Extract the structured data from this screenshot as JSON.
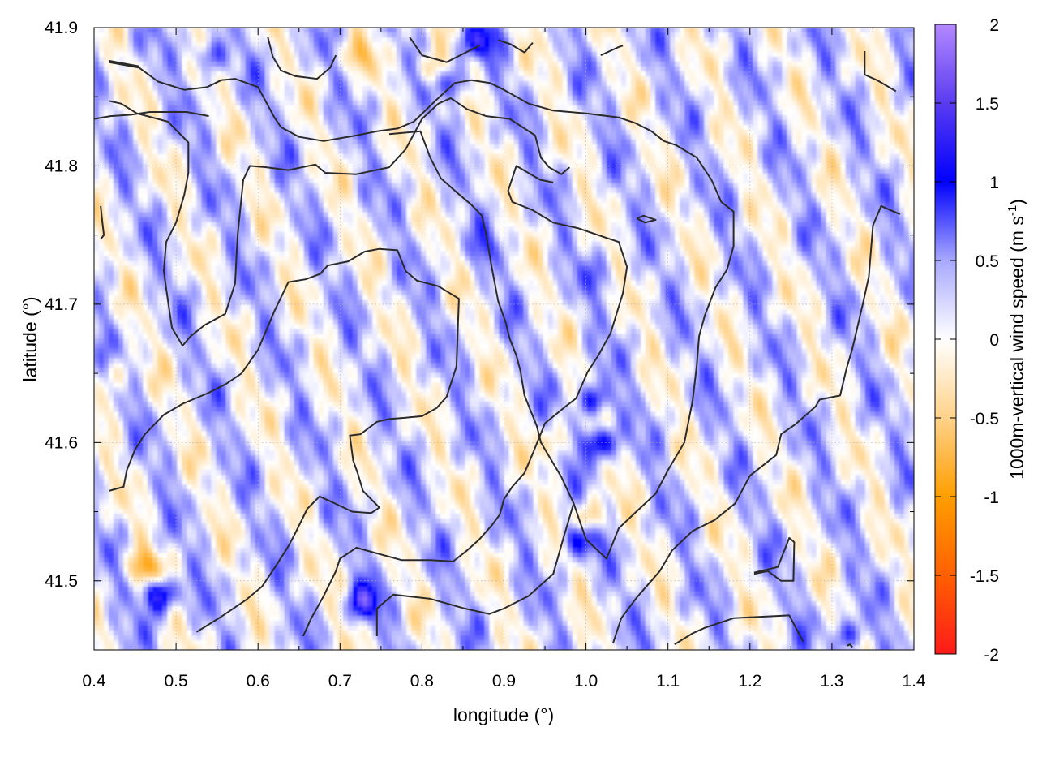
{
  "chart_data": {
    "type": "heatmap",
    "xlabel": "longitude (°)",
    "ylabel": "latitude (°)",
    "colorbar_label": "1000m-vertical wind speed (m s",
    "colorbar_label_sup": "-1",
    "colorbar_label_close": ")",
    "xlim": [
      0.4,
      1.4
    ],
    "ylim": [
      41.45,
      41.9
    ],
    "x_ticks": [
      0.4,
      0.5,
      0.6,
      0.7,
      0.8,
      0.9,
      1.0,
      1.1,
      1.2,
      1.3,
      1.4
    ],
    "x_tick_labels": [
      "0.4",
      "0.5",
      "0.6",
      "0.7",
      "0.8",
      "0.9",
      "1.0",
      "1.1",
      "1.2",
      "1.3",
      "1.4"
    ],
    "y_ticks": [
      41.5,
      41.6,
      41.7,
      41.8,
      41.9
    ],
    "y_tick_labels": [
      "41.5",
      "41.6",
      "41.7",
      "41.8",
      "41.9"
    ],
    "color_range": [
      -2,
      2
    ],
    "colorbar_ticks": [
      2,
      1.5,
      1,
      0.5,
      0,
      -0.5,
      -1,
      -1.5,
      -2
    ],
    "colorbar_tick_labels": [
      "2",
      "1.5",
      "1",
      "0.5",
      "0",
      "-0.5",
      "-1",
      "-1.5",
      "-2"
    ],
    "colormap_stops": [
      {
        "value": -2,
        "color": "#ff1a1a"
      },
      {
        "value": -1,
        "color": "#ff9e00"
      },
      {
        "value": 0,
        "color": "#ffffff"
      },
      {
        "value": 1,
        "color": "#0000ff"
      },
      {
        "value": 2,
        "color": "#b388ff"
      }
    ],
    "grid": true,
    "features": [
      {
        "x": 0.48,
        "y": 41.49,
        "value": 1.3
      },
      {
        "x": 0.46,
        "y": 41.51,
        "value": -0.8
      },
      {
        "x": 0.73,
        "y": 41.485,
        "value": 1.1
      },
      {
        "x": 1.015,
        "y": 41.6,
        "value": 1.2
      },
      {
        "x": 1.01,
        "y": 41.63,
        "value": 1.0
      },
      {
        "x": 0.99,
        "y": 41.53,
        "value": 1.0
      },
      {
        "x": 1.005,
        "y": 41.545,
        "value": -0.7
      },
      {
        "x": 0.965,
        "y": 41.6,
        "value": -0.5
      },
      {
        "x": 0.84,
        "y": 41.86,
        "value": 0.8
      },
      {
        "x": 0.87,
        "y": 41.89,
        "value": 0.9
      },
      {
        "x": 0.54,
        "y": 41.88,
        "value": 0.8
      },
      {
        "x": 0.81,
        "y": 41.87,
        "value": -0.6
      },
      {
        "x": 0.72,
        "y": 41.88,
        "value": -0.5
      },
      {
        "x": 1.32,
        "y": 41.46,
        "value": 0.8
      },
      {
        "x": 0.43,
        "y": 41.65,
        "value": -0.4
      },
      {
        "x": 0.88,
        "y": 41.74,
        "value": 0.3
      },
      {
        "x": 1.02,
        "y": 41.72,
        "value": 0.3
      }
    ],
    "contours": [
      [
        [
          0.418,
          41.565
        ],
        [
          0.436,
          41.568
        ],
        [
          0.44,
          41.58
        ],
        [
          0.45,
          41.595
        ],
        [
          0.462,
          41.606
        ],
        [
          0.485,
          41.62
        ],
        [
          0.508,
          41.628
        ],
        [
          0.52,
          41.631
        ],
        [
          0.54,
          41.636
        ],
        [
          0.56,
          41.642
        ],
        [
          0.58,
          41.65
        ],
        [
          0.6,
          41.667
        ],
        [
          0.62,
          41.695
        ],
        [
          0.637,
          41.716
        ],
        [
          0.658,
          41.718
        ],
        [
          0.676,
          41.722
        ],
        [
          0.685,
          41.728
        ],
        [
          0.71,
          41.731
        ],
        [
          0.73,
          41.738
        ],
        [
          0.748,
          41.74
        ],
        [
          0.77,
          41.739
        ],
        [
          0.78,
          41.724
        ],
        [
          0.794,
          41.717
        ],
        [
          0.82,
          41.713
        ],
        [
          0.845,
          41.704
        ],
        [
          0.842,
          41.655
        ],
        [
          0.83,
          41.633
        ],
        [
          0.818,
          41.625
        ],
        [
          0.8,
          41.619
        ],
        [
          0.78,
          41.618
        ],
        [
          0.76,
          41.617
        ],
        [
          0.745,
          41.615
        ],
        [
          0.725,
          41.606
        ],
        [
          0.712,
          41.605
        ],
        [
          0.716,
          41.587
        ],
        [
          0.722,
          41.577
        ],
        [
          0.728,
          41.565
        ],
        [
          0.748,
          41.553
        ],
        [
          0.738,
          41.549
        ],
        [
          0.715,
          41.55
        ],
        [
          0.69,
          41.557
        ],
        [
          0.675,
          41.561
        ],
        [
          0.66,
          41.552
        ],
        [
          0.645,
          41.534
        ],
        [
          0.637,
          41.525
        ],
        [
          0.621,
          41.51
        ],
        [
          0.605,
          41.496
        ],
        [
          0.585,
          41.486
        ],
        [
          0.555,
          41.474
        ],
        [
          0.525,
          41.463
        ]
      ],
      [
        [
          0.54,
          41.836
        ],
        [
          0.513,
          41.839
        ],
        [
          0.485,
          41.839
        ],
        [
          0.468,
          41.839
        ],
        [
          0.445,
          41.837
        ],
        [
          0.42,
          41.836
        ],
        [
          0.4,
          41.834
        ]
      ],
      [
        [
          0.418,
          41.847
        ],
        [
          0.433,
          41.845
        ],
        [
          0.452,
          41.838
        ],
        [
          0.49,
          41.832
        ],
        [
          0.515,
          41.817
        ],
        [
          0.515,
          41.795
        ],
        [
          0.51,
          41.779
        ],
        [
          0.5,
          41.759
        ],
        [
          0.488,
          41.745
        ],
        [
          0.485,
          41.724
        ],
        [
          0.49,
          41.703
        ],
        [
          0.495,
          41.683
        ],
        [
          0.508,
          41.67
        ],
        [
          0.518,
          41.677
        ],
        [
          0.535,
          41.685
        ],
        [
          0.56,
          41.693
        ],
        [
          0.572,
          41.715
        ],
        [
          0.575,
          41.749
        ],
        [
          0.582,
          41.79
        ],
        [
          0.59,
          41.8
        ],
        [
          0.61,
          41.799
        ],
        [
          0.637,
          41.797
        ],
        [
          0.67,
          41.801
        ],
        [
          0.682,
          41.795
        ],
        [
          0.72,
          41.794
        ],
        [
          0.76,
          41.799
        ],
        [
          0.78,
          41.812
        ],
        [
          0.8,
          41.834
        ],
        [
          0.82,
          41.845
        ],
        [
          0.835,
          41.849
        ],
        [
          0.855,
          41.841
        ],
        [
          0.878,
          41.836
        ],
        [
          0.907,
          41.834
        ],
        [
          0.938,
          41.822
        ],
        [
          0.945,
          41.806
        ],
        [
          0.955,
          41.799
        ],
        [
          0.97,
          41.794
        ],
        [
          0.98,
          41.799
        ]
      ],
      [
        [
          0.418,
          41.875
        ],
        [
          0.455,
          41.871
        ],
        [
          0.478,
          41.861
        ],
        [
          0.51,
          41.855
        ],
        [
          0.538,
          41.857
        ],
        [
          0.555,
          41.862
        ],
        [
          0.572,
          41.863
        ],
        [
          0.6,
          41.857
        ],
        [
          0.62,
          41.835
        ],
        [
          0.628,
          41.828
        ],
        [
          0.65,
          41.821
        ],
        [
          0.68,
          41.818
        ],
        [
          0.7,
          41.82
        ],
        [
          0.72,
          41.822
        ],
        [
          0.745,
          41.825
        ],
        [
          0.77,
          41.827
        ],
        [
          0.79,
          41.832
        ],
        [
          0.818,
          41.848
        ],
        [
          0.84,
          41.86
        ],
        [
          0.86,
          41.862
        ],
        [
          0.883,
          41.86
        ],
        [
          0.9,
          41.855
        ],
        [
          0.93,
          41.845
        ],
        [
          0.96,
          41.84
        ],
        [
          1.0,
          41.838
        ],
        [
          1.04,
          41.835
        ],
        [
          1.06,
          41.831
        ],
        [
          1.08,
          41.825
        ],
        [
          1.095,
          41.818
        ],
        [
          1.11,
          41.815
        ],
        [
          1.135,
          41.806
        ],
        [
          1.153,
          41.79
        ],
        [
          1.165,
          41.774
        ],
        [
          1.18,
          41.767
        ],
        [
          1.18,
          41.746
        ],
        [
          1.18,
          41.742
        ],
        [
          1.172,
          41.725
        ],
        [
          1.158,
          41.712
        ],
        [
          1.145,
          41.692
        ],
        [
          1.138,
          41.677
        ],
        [
          1.135,
          41.655
        ],
        [
          1.13,
          41.63
        ],
        [
          1.12,
          41.6
        ],
        [
          1.1,
          41.58
        ],
        [
          1.085,
          41.563
        ],
        [
          1.065,
          41.552
        ],
        [
          1.04,
          41.538
        ],
        [
          1.025,
          41.516
        ],
        [
          1.0,
          41.53
        ],
        [
          0.985,
          41.556
        ],
        [
          0.97,
          41.575
        ],
        [
          0.955,
          41.59
        ],
        [
          0.945,
          41.6
        ],
        [
          0.94,
          41.612
        ],
        [
          0.925,
          41.634
        ],
        [
          0.92,
          41.652
        ],
        [
          0.915,
          41.663
        ],
        [
          0.907,
          41.675
        ],
        [
          0.902,
          41.687
        ],
        [
          0.893,
          41.702
        ],
        [
          0.885,
          41.727
        ],
        [
          0.878,
          41.751
        ],
        [
          0.873,
          41.764
        ],
        [
          0.86,
          41.772
        ],
        [
          0.842,
          41.781
        ],
        [
          0.823,
          41.791
        ],
        [
          0.81,
          41.806
        ],
        [
          0.798,
          41.825
        ],
        [
          0.76,
          41.823
        ]
      ],
      [
        [
          0.418,
          41.876
        ],
        [
          0.455,
          41.872
        ]
      ],
      [
        [
          1.378,
          41.854
        ],
        [
          1.355,
          41.862
        ],
        [
          1.34,
          41.866
        ],
        [
          1.34,
          41.883
        ]
      ],
      [
        [
          1.383,
          41.765
        ],
        [
          1.36,
          41.771
        ],
        [
          1.35,
          41.757
        ],
        [
          1.345,
          41.72
        ],
        [
          1.338,
          41.701
        ],
        [
          1.325,
          41.668
        ],
        [
          1.318,
          41.654
        ],
        [
          1.31,
          41.634
        ],
        [
          1.285,
          41.631
        ],
        [
          1.28,
          41.626
        ],
        [
          1.255,
          41.613
        ],
        [
          1.238,
          41.606
        ],
        [
          1.232,
          41.591
        ],
        [
          1.2,
          41.576
        ],
        [
          1.182,
          41.556
        ],
        [
          1.157,
          41.544
        ],
        [
          1.13,
          41.536
        ],
        [
          1.105,
          41.522
        ],
        [
          1.09,
          41.507
        ],
        [
          1.062,
          41.488
        ],
        [
          1.043,
          41.473
        ],
        [
          1.033,
          41.455
        ]
      ],
      [
        [
          0.655,
          41.46
        ],
        [
          0.665,
          41.473
        ],
        [
          0.68,
          41.489
        ],
        [
          0.695,
          41.507
        ],
        [
          0.7,
          41.516
        ],
        [
          0.72,
          41.524
        ],
        [
          0.738,
          41.521
        ],
        [
          0.775,
          41.515
        ],
        [
          0.81,
          41.515
        ],
        [
          0.838,
          41.514
        ],
        [
          0.855,
          41.522
        ],
        [
          0.87,
          41.53
        ],
        [
          0.885,
          41.54
        ],
        [
          0.895,
          41.548
        ],
        [
          0.9,
          41.559
        ],
        [
          0.91,
          41.568
        ],
        [
          0.925,
          41.578
        ],
        [
          0.935,
          41.592
        ],
        [
          0.95,
          41.614
        ],
        [
          0.975,
          41.626
        ],
        [
          0.988,
          41.632
        ],
        [
          1.002,
          41.651
        ],
        [
          1.015,
          41.663
        ],
        [
          1.03,
          41.679
        ],
        [
          1.045,
          41.708
        ],
        [
          1.05,
          41.727
        ],
        [
          1.04,
          41.745
        ],
        [
          1.02,
          41.749
        ],
        [
          0.99,
          41.755
        ],
        [
          0.96,
          41.759
        ],
        [
          0.935,
          41.768
        ],
        [
          0.91,
          41.774
        ],
        [
          0.905,
          41.782
        ],
        [
          0.915,
          41.8
        ],
        [
          0.944,
          41.79
        ],
        [
          0.96,
          41.788
        ]
      ],
      [
        [
          0.745,
          41.46
        ],
        [
          0.745,
          41.48
        ],
        [
          0.765,
          41.49
        ],
        [
          0.81,
          41.487
        ],
        [
          0.852,
          41.48
        ],
        [
          0.882,
          41.476
        ],
        [
          0.9,
          41.48
        ],
        [
          0.93,
          41.489
        ],
        [
          0.96,
          41.505
        ],
        [
          0.972,
          41.53
        ],
        [
          0.985,
          41.556
        ]
      ],
      [
        [
          1.062,
          41.762
        ],
        [
          1.07,
          41.764
        ],
        [
          1.085,
          41.761
        ],
        [
          1.072,
          41.759
        ],
        [
          1.062,
          41.762
        ]
      ],
      [
        [
          1.205,
          41.505
        ],
        [
          1.222,
          41.507
        ],
        [
          1.238,
          41.5
        ],
        [
          1.253,
          41.5
        ],
        [
          1.254,
          41.528
        ],
        [
          1.248,
          41.531
        ],
        [
          1.234,
          41.51
        ],
        [
          1.205,
          41.506
        ]
      ],
      [
        [
          1.108,
          41.454
        ],
        [
          1.13,
          41.462
        ],
        [
          1.145,
          41.466
        ],
        [
          1.18,
          41.473
        ],
        [
          1.248,
          41.475
        ],
        [
          1.265,
          41.456
        ]
      ],
      [
        [
          0.408,
          41.771
        ],
        [
          0.41,
          41.76
        ],
        [
          0.412,
          41.75
        ],
        [
          0.408,
          41.747
        ]
      ],
      [
        [
          0.612,
          41.893
        ],
        [
          0.618,
          41.879
        ],
        [
          0.628,
          41.869
        ],
        [
          0.645,
          41.865
        ],
        [
          0.672,
          41.863
        ],
        [
          0.688,
          41.871
        ],
        [
          0.695,
          41.88
        ]
      ],
      [
        [
          0.785,
          41.893
        ],
        [
          0.8,
          41.88
        ],
        [
          0.83,
          41.875
        ],
        [
          0.87,
          41.887
        ]
      ],
      [
        [
          0.893,
          41.891
        ],
        [
          0.908,
          41.888
        ],
        [
          0.925,
          41.882
        ],
        [
          0.935,
          41.889
        ]
      ],
      [
        [
          1.018,
          41.88
        ],
        [
          1.04,
          41.886
        ],
        [
          1.045,
          41.887
        ]
      ],
      [
        [
          1.318,
          41.453
        ],
        [
          1.322,
          41.454
        ],
        [
          1.325,
          41.452
        ]
      ]
    ]
  }
}
